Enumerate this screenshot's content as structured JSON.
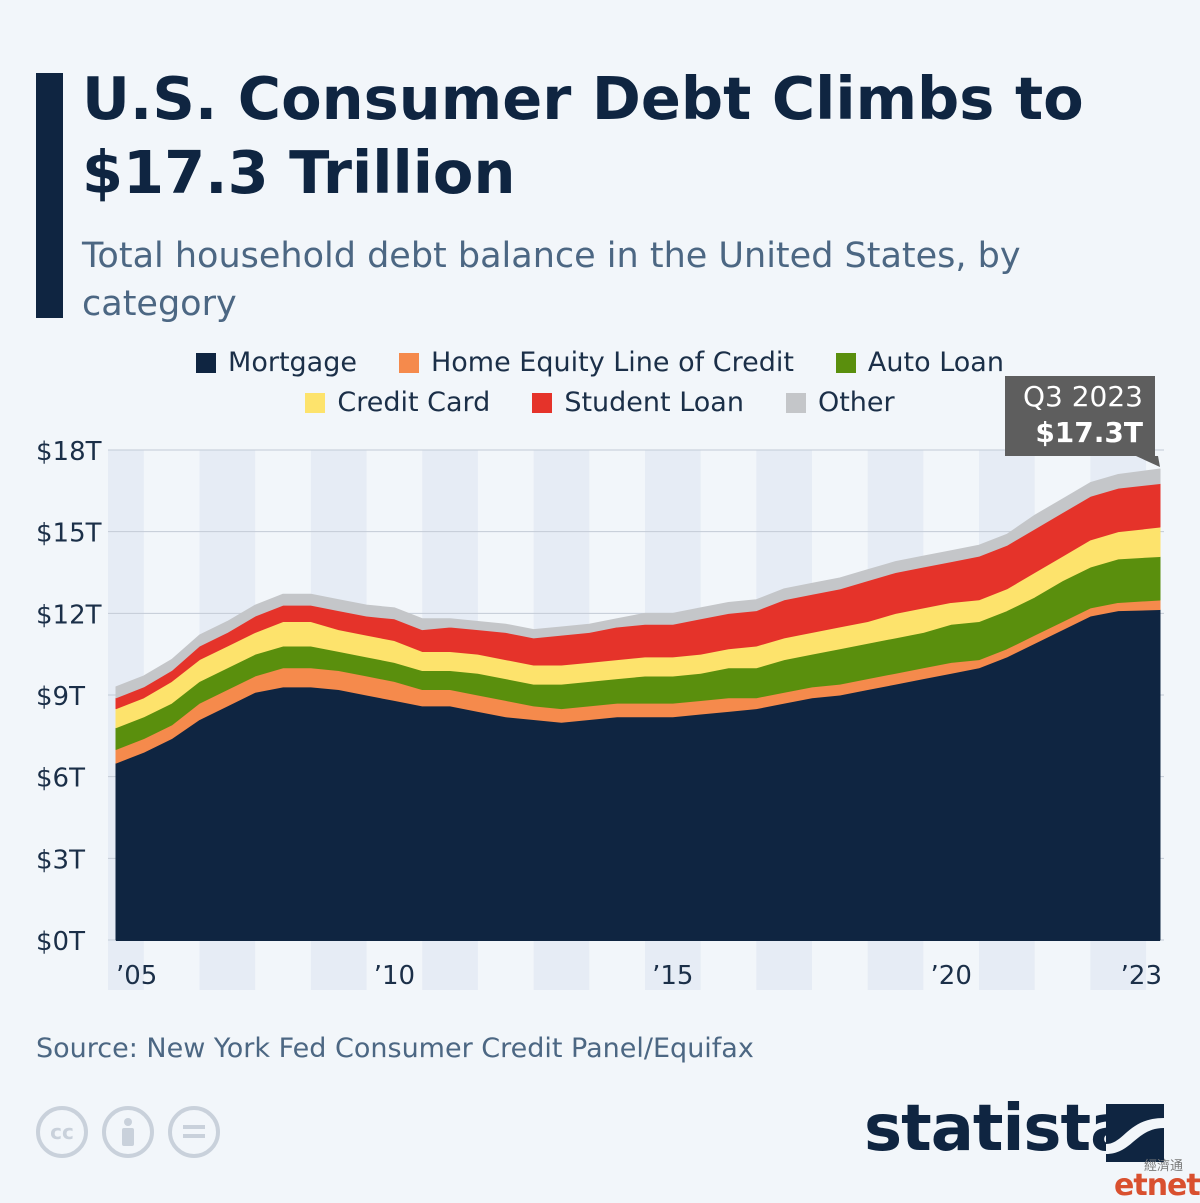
{
  "header": {
    "title": "U.S. Consumer Debt Climbs to $17.3 Trillion",
    "subtitle": "Total household debt balance in the United States, by category"
  },
  "legend": {
    "row1": [
      {
        "label": "Mortgage",
        "color": "#0f2541"
      },
      {
        "label": "Home Equity Line of Credit",
        "color": "#f58a4c"
      },
      {
        "label": "Auto Loan",
        "color": "#5a8f0d"
      }
    ],
    "row2": [
      {
        "label": "Credit Card",
        "color": "#fde36c"
      },
      {
        "label": "Student Loan",
        "color": "#e5332a"
      },
      {
        "label": "Other",
        "color": "#c4c6c9"
      }
    ]
  },
  "callout": {
    "period": "Q3 2023",
    "value": "$17.3T",
    "color": "#5e5e5e"
  },
  "footer": {
    "source": "Source: New York Fed Consumer Credit Panel/Equifax",
    "brand": "statista",
    "cc_icons": [
      "cc-icon",
      "attribution-icon",
      "no-derivatives-icon"
    ],
    "watermark": "etnet",
    "watermark_cn": "經濟通"
  },
  "chart_data": {
    "type": "area",
    "stacked": true,
    "x": [
      2005.0,
      2005.5,
      2006.0,
      2006.5,
      2007.0,
      2007.5,
      2008.0,
      2008.5,
      2009.0,
      2009.5,
      2010.0,
      2010.5,
      2011.0,
      2011.5,
      2012.0,
      2012.5,
      2013.0,
      2013.5,
      2014.0,
      2014.5,
      2015.0,
      2015.5,
      2016.0,
      2016.5,
      2017.0,
      2017.5,
      2018.0,
      2018.5,
      2019.0,
      2019.5,
      2020.0,
      2020.5,
      2021.0,
      2021.5,
      2022.0,
      2022.5,
      2023.0,
      2023.75
    ],
    "x_tick_labels": [
      {
        "x": 2005,
        "label": "’05"
      },
      {
        "x": 2010,
        "label": "’10"
      },
      {
        "x": 2015,
        "label": "’15"
      },
      {
        "x": 2020,
        "label": "’20"
      },
      {
        "x": 2023.75,
        "label": "’23"
      }
    ],
    "ylim": [
      0,
      18
    ],
    "y_ticks": [
      0,
      3,
      6,
      9,
      12,
      15,
      18
    ],
    "y_tick_labels": [
      "$0T",
      "$3T",
      "$6T",
      "$9T",
      "$12T",
      "$15T",
      "$18T"
    ],
    "grid": true,
    "series": [
      {
        "name": "Mortgage",
        "color": "#0f2541",
        "values": [
          6.5,
          6.9,
          7.4,
          8.1,
          8.6,
          9.1,
          9.3,
          9.3,
          9.2,
          9.0,
          8.8,
          8.6,
          8.6,
          8.4,
          8.2,
          8.1,
          8.0,
          8.1,
          8.2,
          8.2,
          8.2,
          8.3,
          8.4,
          8.5,
          8.7,
          8.9,
          9.0,
          9.2,
          9.4,
          9.6,
          9.8,
          10.0,
          10.4,
          10.9,
          11.4,
          11.9,
          12.1,
          12.14
        ]
      },
      {
        "name": "Home Equity Line of Credit",
        "color": "#f58a4c",
        "values": [
          0.5,
          0.5,
          0.5,
          0.6,
          0.6,
          0.6,
          0.7,
          0.7,
          0.7,
          0.7,
          0.7,
          0.6,
          0.6,
          0.6,
          0.6,
          0.5,
          0.5,
          0.5,
          0.5,
          0.5,
          0.5,
          0.5,
          0.5,
          0.4,
          0.4,
          0.4,
          0.4,
          0.4,
          0.4,
          0.4,
          0.4,
          0.3,
          0.3,
          0.3,
          0.3,
          0.3,
          0.3,
          0.35
        ]
      },
      {
        "name": "Auto Loan",
        "color": "#5a8f0d",
        "values": [
          0.8,
          0.8,
          0.8,
          0.8,
          0.8,
          0.8,
          0.8,
          0.8,
          0.7,
          0.7,
          0.7,
          0.7,
          0.7,
          0.8,
          0.8,
          0.8,
          0.9,
          0.9,
          0.9,
          1.0,
          1.0,
          1.0,
          1.1,
          1.1,
          1.2,
          1.2,
          1.3,
          1.3,
          1.3,
          1.3,
          1.4,
          1.4,
          1.4,
          1.4,
          1.5,
          1.5,
          1.6,
          1.6
        ]
      },
      {
        "name": "Credit Card",
        "color": "#fde36c",
        "values": [
          0.7,
          0.7,
          0.8,
          0.8,
          0.8,
          0.8,
          0.9,
          0.9,
          0.8,
          0.8,
          0.8,
          0.7,
          0.7,
          0.7,
          0.7,
          0.7,
          0.7,
          0.7,
          0.7,
          0.7,
          0.7,
          0.7,
          0.7,
          0.8,
          0.8,
          0.8,
          0.8,
          0.8,
          0.9,
          0.9,
          0.8,
          0.8,
          0.8,
          0.9,
          0.9,
          1.0,
          1.0,
          1.08
        ]
      },
      {
        "name": "Student Loan",
        "color": "#e5332a",
        "values": [
          0.4,
          0.4,
          0.4,
          0.5,
          0.5,
          0.6,
          0.6,
          0.6,
          0.7,
          0.7,
          0.8,
          0.8,
          0.9,
          0.9,
          1.0,
          1.0,
          1.1,
          1.1,
          1.2,
          1.2,
          1.2,
          1.3,
          1.3,
          1.3,
          1.4,
          1.4,
          1.4,
          1.5,
          1.5,
          1.5,
          1.5,
          1.6,
          1.6,
          1.6,
          1.6,
          1.6,
          1.6,
          1.6
        ]
      },
      {
        "name": "Other",
        "color": "#c4c6c9",
        "values": [
          0.4,
          0.4,
          0.4,
          0.4,
          0.4,
          0.4,
          0.4,
          0.4,
          0.4,
          0.4,
          0.4,
          0.4,
          0.3,
          0.3,
          0.3,
          0.3,
          0.3,
          0.3,
          0.3,
          0.4,
          0.4,
          0.4,
          0.4,
          0.4,
          0.4,
          0.4,
          0.4,
          0.4,
          0.4,
          0.4,
          0.4,
          0.4,
          0.4,
          0.5,
          0.5,
          0.5,
          0.5,
          0.53
        ]
      }
    ]
  }
}
